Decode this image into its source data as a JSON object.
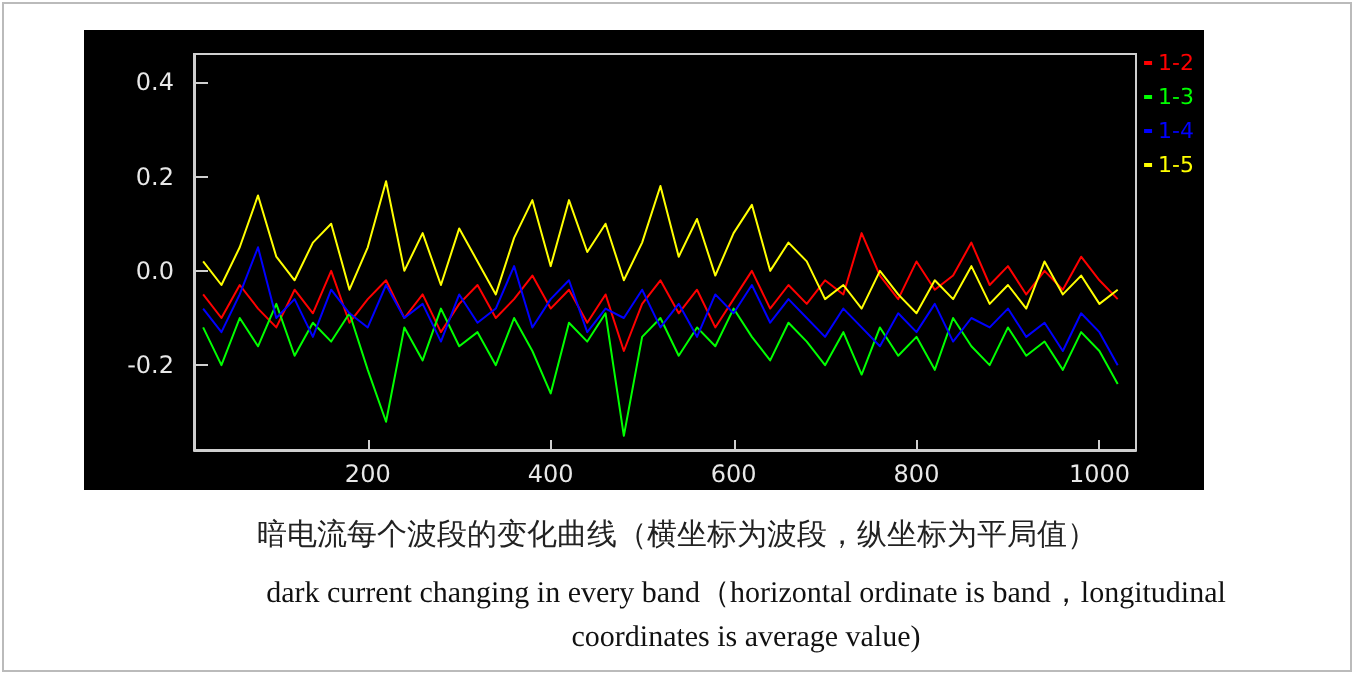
{
  "chart_data": {
    "type": "line",
    "annotations": [
      "暗电流每个波段的变化曲线（横坐标为波段，纵坐标为平局值）",
      "dark current changing in every band（horizontal ordinate is band，longitudinal coordinates is average value)"
    ],
    "x": [
      20,
      40,
      60,
      80,
      100,
      120,
      140,
      160,
      180,
      200,
      220,
      240,
      260,
      280,
      300,
      320,
      340,
      360,
      380,
      400,
      420,
      440,
      460,
      480,
      500,
      520,
      540,
      560,
      580,
      600,
      620,
      640,
      660,
      680,
      700,
      720,
      740,
      760,
      780,
      800,
      820,
      840,
      860,
      880,
      900,
      920,
      940,
      960,
      980,
      1000,
      1020
    ],
    "series": [
      {
        "name": "1-2",
        "color": "#ff0000",
        "values": [
          -0.05,
          -0.1,
          -0.03,
          -0.08,
          -0.12,
          -0.04,
          -0.09,
          0.0,
          -0.11,
          -0.06,
          -0.02,
          -0.1,
          -0.05,
          -0.13,
          -0.07,
          -0.03,
          -0.1,
          -0.06,
          -0.01,
          -0.08,
          -0.04,
          -0.11,
          -0.05,
          -0.17,
          -0.07,
          -0.02,
          -0.09,
          -0.04,
          -0.12,
          -0.06,
          0.0,
          -0.08,
          -0.03,
          -0.07,
          -0.02,
          -0.05,
          0.08,
          -0.01,
          -0.06,
          0.02,
          -0.04,
          -0.01,
          0.06,
          -0.03,
          0.01,
          -0.05,
          0.0,
          -0.04,
          0.03,
          -0.02,
          -0.06
        ]
      },
      {
        "name": "1-3",
        "color": "#00ff00",
        "values": [
          -0.12,
          -0.2,
          -0.1,
          -0.16,
          -0.07,
          -0.18,
          -0.11,
          -0.15,
          -0.09,
          -0.21,
          -0.32,
          -0.12,
          -0.19,
          -0.08,
          -0.16,
          -0.13,
          -0.2,
          -0.1,
          -0.17,
          -0.26,
          -0.11,
          -0.15,
          -0.09,
          -0.35,
          -0.14,
          -0.1,
          -0.18,
          -0.12,
          -0.16,
          -0.08,
          -0.14,
          -0.19,
          -0.11,
          -0.15,
          -0.2,
          -0.13,
          -0.22,
          -0.12,
          -0.18,
          -0.14,
          -0.21,
          -0.1,
          -0.16,
          -0.2,
          -0.12,
          -0.18,
          -0.15,
          -0.21,
          -0.13,
          -0.17,
          -0.24
        ]
      },
      {
        "name": "1-4",
        "color": "#0000ff",
        "values": [
          -0.08,
          -0.13,
          -0.05,
          0.05,
          -0.1,
          -0.06,
          -0.14,
          -0.04,
          -0.09,
          -0.12,
          -0.03,
          -0.1,
          -0.07,
          -0.15,
          -0.05,
          -0.11,
          -0.08,
          0.01,
          -0.12,
          -0.06,
          -0.02,
          -0.13,
          -0.08,
          -0.1,
          -0.04,
          -0.12,
          -0.07,
          -0.14,
          -0.05,
          -0.09,
          -0.03,
          -0.11,
          -0.06,
          -0.1,
          -0.14,
          -0.08,
          -0.12,
          -0.16,
          -0.09,
          -0.13,
          -0.07,
          -0.15,
          -0.1,
          -0.12,
          -0.08,
          -0.14,
          -0.11,
          -0.17,
          -0.09,
          -0.13,
          -0.2
        ]
      },
      {
        "name": "1-5",
        "color": "#ffff00",
        "values": [
          0.02,
          -0.03,
          0.05,
          0.16,
          0.03,
          -0.02,
          0.06,
          0.1,
          -0.04,
          0.05,
          0.19,
          0.0,
          0.08,
          -0.03,
          0.09,
          0.02,
          -0.05,
          0.07,
          0.15,
          0.01,
          0.15,
          0.04,
          0.1,
          -0.02,
          0.06,
          0.18,
          0.03,
          0.11,
          -0.01,
          0.08,
          0.14,
          0.0,
          0.06,
          0.02,
          -0.06,
          -0.03,
          -0.08,
          0.0,
          -0.05,
          -0.09,
          -0.02,
          -0.06,
          0.01,
          -0.07,
          -0.03,
          -0.08,
          0.02,
          -0.05,
          -0.01,
          -0.07,
          -0.04
        ]
      }
    ],
    "xlim": [
      10,
      1040
    ],
    "xticks": [
      200,
      400,
      600,
      800,
      1000
    ],
    "ylim": [
      -0.38,
      0.46
    ],
    "yticks": [
      {
        "value": -0.2,
        "label": "-0.2"
      },
      {
        "value": 0,
        "label": "0.0"
      },
      {
        "value": 0.2,
        "label": "0.2"
      },
      {
        "value": 0.4,
        "label": "0.4"
      }
    ],
    "grid": false,
    "legend": "top right",
    "marker": "none",
    "line_style": "solid"
  }
}
